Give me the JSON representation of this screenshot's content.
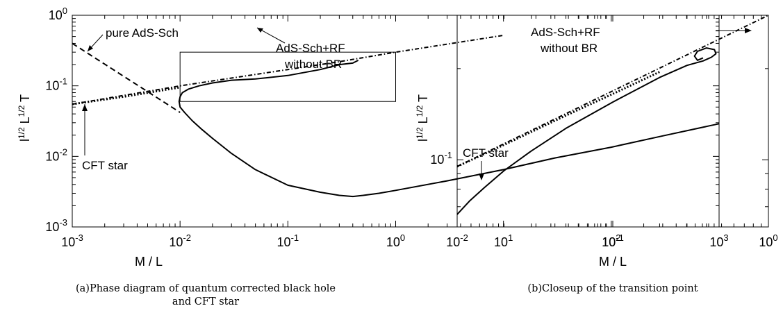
{
  "chart_data": [
    {
      "type": "line",
      "panel": "a",
      "caption": "(a)Phase diagram of quantum corrected black hole and CFT star",
      "xlabel": "M / L",
      "ylabel_parts": [
        "l",
        "1/2",
        " L",
        "1/2",
        " T"
      ],
      "xscale": "log",
      "yscale": "log",
      "xlim": [
        0.001,
        1000
      ],
      "ylim": [
        0.001,
        1
      ],
      "x_ticks": [
        {
          "value": 0.001,
          "base": "10",
          "exp": "-3"
        },
        {
          "value": 0.01,
          "base": "10",
          "exp": "-2"
        },
        {
          "value": 0.1,
          "base": "10",
          "exp": "-1"
        },
        {
          "value": 1,
          "base": "10",
          "exp": "0"
        },
        {
          "value": 10,
          "base": "10",
          "exp": "1"
        },
        {
          "value": 100,
          "base": "10",
          "exp": "2"
        },
        {
          "value": 1000,
          "base": "10",
          "exp": "3"
        }
      ],
      "y_ticks": [
        {
          "value": 0.001,
          "base": "10",
          "exp": "-3"
        },
        {
          "value": 0.01,
          "base": "10",
          "exp": "-2"
        },
        {
          "value": 0.1,
          "base": "10",
          "exp": "-1"
        },
        {
          "value": 1,
          "base": "10",
          "exp": "0"
        }
      ],
      "grid": false,
      "series": [
        {
          "id": "pure-ads-sch",
          "style": "dashed",
          "x": [
            0.001,
            0.01
          ],
          "y": [
            0.4,
            0.042
          ]
        },
        {
          "id": "ads-sch-rf",
          "style": "dash-dot",
          "x": [
            0.001,
            0.01,
            0.1,
            0.3,
            1,
            10
          ],
          "y": [
            0.055,
            0.1,
            0.17,
            0.22,
            0.3,
            0.52
          ]
        },
        {
          "id": "cft-star",
          "style": "dotted",
          "x": [
            0.001,
            0.003,
            0.01
          ],
          "y": [
            0.055,
            0.07,
            0.095
          ]
        },
        {
          "id": "black-hole",
          "style": "solid",
          "x": [
            0.45,
            0.4,
            0.3,
            0.2,
            0.1,
            0.05,
            0.03,
            0.02,
            0.015,
            0.012,
            0.0105,
            0.01,
            0.0098,
            0.01,
            0.011,
            0.013,
            0.016,
            0.02,
            0.03,
            0.05,
            0.1,
            0.2,
            0.3,
            0.4,
            0.5,
            0.7,
            1,
            3,
            10,
            30,
            100,
            300,
            1000
          ],
          "y": [
            0.23,
            0.21,
            0.2,
            0.17,
            0.14,
            0.125,
            0.12,
            0.11,
            0.1,
            0.09,
            0.08,
            0.07,
            0.06,
            0.05,
            0.042,
            0.032,
            0.024,
            0.018,
            0.011,
            0.0065,
            0.0039,
            0.0031,
            0.0028,
            0.0027,
            0.0028,
            0.003,
            0.0033,
            0.0045,
            0.0065,
            0.0095,
            0.0135,
            0.0195,
            0.029
          ]
        }
      ],
      "inset_box": {
        "x": [
          0.01,
          1
        ],
        "y": [
          0.06,
          0.3
        ]
      },
      "annotations": [
        {
          "text": "pure AdS-Sch",
          "arrow": "left"
        },
        {
          "text": "AdS-Sch+RF",
          "text2": "without BR",
          "arrow": "up-left"
        },
        {
          "text": "CFT star",
          "arrow": "up"
        }
      ]
    },
    {
      "type": "line",
      "panel": "b",
      "caption": "(b)Closeup of the transition point",
      "xlabel": "M / L",
      "ylabel_parts": [
        "l",
        "1/2",
        " L",
        "1/2",
        " T"
      ],
      "xscale": "log",
      "yscale": "log",
      "xlim": [
        0.01,
        1
      ],
      "ylim": [
        0.06,
        0.3
      ],
      "x_ticks": [
        {
          "value": 0.01,
          "base": "10",
          "exp": "-2"
        },
        {
          "value": 0.1,
          "base": "10",
          "exp": "-1"
        },
        {
          "value": 1,
          "base": "10",
          "exp": "0"
        }
      ],
      "y_ticks": [
        {
          "value": 0.1,
          "base": "10",
          "exp": "-1"
        }
      ],
      "grid": false,
      "series": [
        {
          "id": "ads-sch-rf",
          "style": "dash-dot",
          "x": [
            0.01,
            1
          ],
          "y": [
            0.095,
            0.3
          ]
        },
        {
          "id": "cft-star",
          "style": "dotted",
          "x": [
            0.01,
            0.02,
            0.05,
            0.1,
            0.2
          ],
          "y": [
            0.095,
            0.112,
            0.14,
            0.165,
            0.195
          ]
        },
        {
          "id": "black-hole",
          "style": "solid",
          "x": [
            0.01,
            0.012,
            0.015,
            0.02,
            0.03,
            0.05,
            0.1,
            0.2,
            0.3,
            0.38,
            0.43,
            0.46,
            0.45,
            0.4,
            0.35,
            0.335,
            0.35,
            0.38
          ],
          "y": [
            0.066,
            0.073,
            0.081,
            0.092,
            0.107,
            0.127,
            0.155,
            0.187,
            0.205,
            0.212,
            0.218,
            0.224,
            0.231,
            0.234,
            0.228,
            0.22,
            0.213,
            0.217
          ]
        }
      ],
      "annotations": [
        {
          "text": "AdS-Sch+RF",
          "text2": "without BR",
          "arrow": "right"
        },
        {
          "text": "CFT star",
          "arrow": "down"
        }
      ]
    }
  ]
}
